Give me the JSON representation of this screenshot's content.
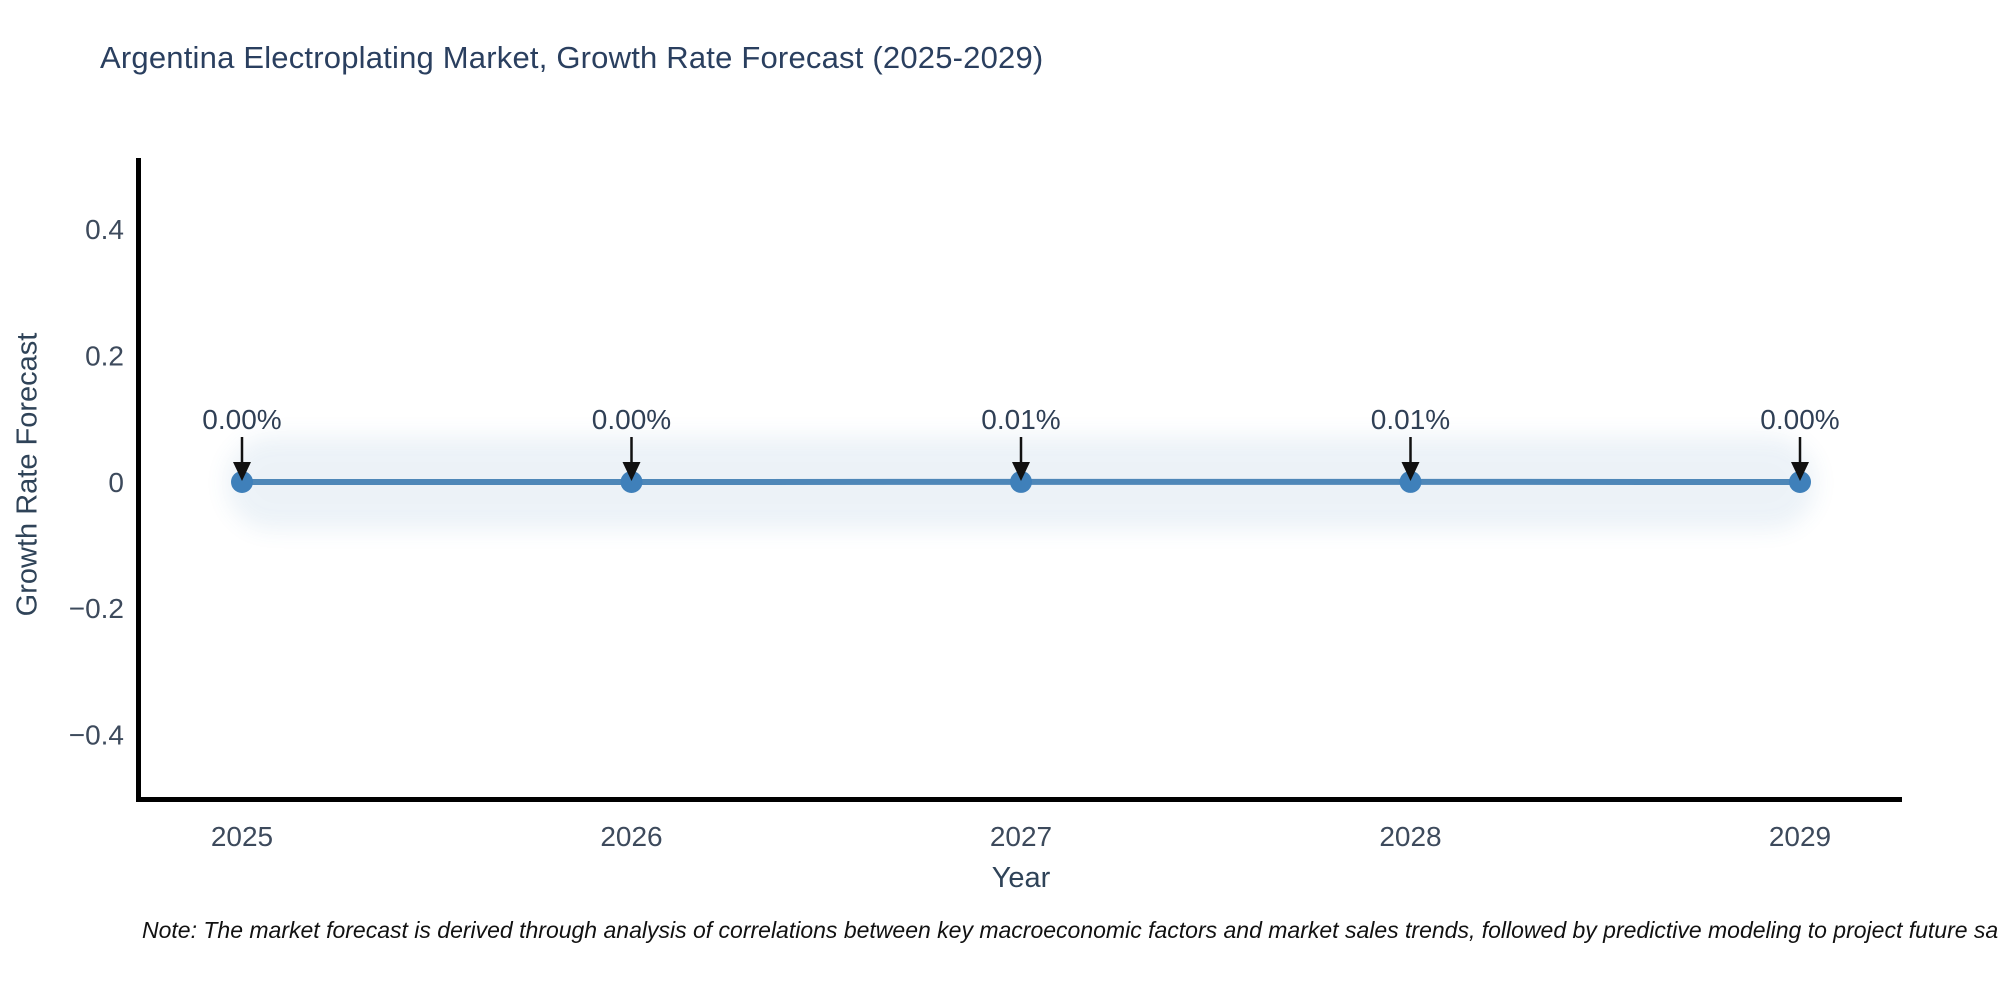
{
  "title": "Argentina Electroplating Market, Growth Rate Forecast (2025-2029)",
  "note": "Note: The market forecast is derived through analysis of correlations between key macroeconomic factors and market sales trends, followed by predictive modeling to project future sa",
  "chart_data": {
    "type": "line",
    "title": "Argentina Electroplating Market, Growth Rate Forecast (2025-2029)",
    "x": [
      2025,
      2026,
      2027,
      2028,
      2029
    ],
    "series": [
      {
        "name": "Growth Rate Forecast",
        "values": [
          0.0,
          0.0,
          0.01,
          0.01,
          0.0
        ],
        "unit": "%"
      }
    ],
    "point_labels": [
      "0.00%",
      "0.00%",
      "0.01%",
      "0.01%",
      "0.00%"
    ],
    "xlabel": "Year",
    "ylabel": "Growth Rate Forecast",
    "ylim": [
      -0.5,
      0.5
    ],
    "yticks": [
      0.4,
      0.2,
      0,
      -0.2,
      -0.4
    ],
    "ytick_labels": [
      "0.4",
      "0.2",
      "0",
      "−0.2",
      "−0.4"
    ],
    "xtick_labels": [
      "2025",
      "2026",
      "2027",
      "2028",
      "2029"
    ],
    "grid": false,
    "legend": false,
    "colors": {
      "line": "#4e87b8",
      "marker": "#3f80ba",
      "band": "#4d87ba",
      "annotation_text": "#2f3f55",
      "arrow": "#111111",
      "axis_line": "#000000",
      "tick_label": "#3d4a5c",
      "title": "#2a3f5f",
      "background": "#ffffff"
    }
  }
}
